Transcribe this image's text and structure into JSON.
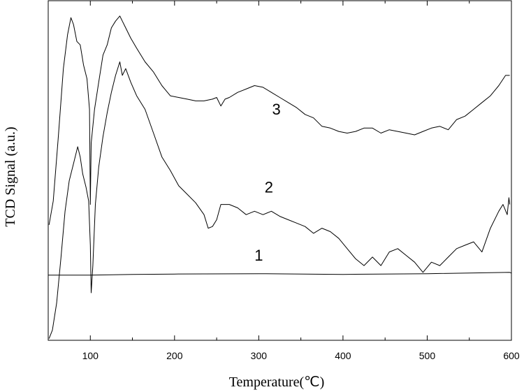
{
  "chart_data": {
    "type": "line",
    "xlabel": "Temperature(℃)",
    "ylabel": "TCD Signal (a.u.)",
    "xlim": [
      50,
      600
    ],
    "ylim": [
      0,
      100
    ],
    "x_ticks": [
      "100",
      "200",
      "300",
      "400",
      "500",
      "600"
    ],
    "x_tick_values": [
      100,
      200,
      300,
      400,
      500,
      600
    ],
    "grid": false,
    "legend": "none",
    "series_labels": [
      "1",
      "2",
      "3"
    ],
    "series": [
      {
        "label": "1",
        "x": [
          50,
          100,
          150,
          200,
          300,
          400,
          500,
          598,
          600
        ],
        "y": [
          19.2,
          19.2,
          19.4,
          19.5,
          19.6,
          19.4,
          19.6,
          20.0,
          19.8
        ]
      },
      {
        "label": "2",
        "x": [
          51,
          55,
          60,
          65,
          70,
          75,
          80,
          85,
          88,
          91,
          95,
          98,
          100,
          101,
          103,
          106,
          110,
          115,
          120,
          125,
          130,
          135,
          138,
          142,
          148,
          155,
          165,
          175,
          185,
          195,
          205,
          215,
          225,
          235,
          240,
          245,
          250,
          255,
          265,
          275,
          285,
          295,
          305,
          315,
          325,
          335,
          345,
          355,
          365,
          375,
          385,
          395,
          405,
          415,
          425,
          435,
          445,
          455,
          465,
          475,
          485,
          495,
          505,
          515,
          525,
          535,
          545,
          555,
          565,
          575,
          585,
          590,
          595,
          597,
          598
        ],
        "y": [
          0.5,
          3.0,
          11.0,
          24.0,
          38.0,
          47.0,
          52.0,
          57.0,
          54.0,
          49.0,
          45.0,
          41.0,
          28.0,
          14.0,
          22.0,
          40.0,
          51.0,
          60.0,
          67.0,
          73.0,
          78.0,
          82.0,
          78.0,
          80.0,
          76.0,
          72.0,
          68.0,
          61.0,
          54.0,
          50.0,
          45.5,
          43.0,
          40.5,
          37.0,
          33.0,
          33.5,
          35.5,
          40.0,
          40.0,
          39.0,
          37.0,
          38.0,
          37.0,
          38.0,
          36.5,
          35.5,
          34.5,
          33.5,
          31.5,
          33.0,
          32.0,
          30.0,
          27.0,
          24.0,
          22.0,
          24.5,
          22.0,
          26.0,
          27.0,
          25.0,
          23.0,
          20.0,
          23.0,
          22.0,
          24.5,
          27.0,
          28.0,
          29.0,
          26.0,
          33.0,
          38.0,
          40.0,
          37.0,
          42.0,
          40.0
        ]
      },
      {
        "label": "3",
        "x": [
          51,
          56,
          62,
          68,
          73,
          77,
          80,
          84,
          88,
          92,
          96,
          99,
          100,
          101,
          105,
          110,
          115,
          120,
          125,
          130,
          135,
          138,
          142,
          148,
          155,
          165,
          175,
          185,
          195,
          205,
          215,
          225,
          235,
          245,
          250,
          255,
          260,
          265,
          275,
          285,
          295,
          305,
          315,
          325,
          335,
          345,
          355,
          365,
          375,
          385,
          395,
          405,
          415,
          425,
          435,
          445,
          455,
          465,
          475,
          485,
          495,
          505,
          515,
          525,
          535,
          545,
          555,
          565,
          575,
          585,
          593,
          598
        ],
        "y": [
          34.0,
          41.0,
          60.0,
          80.0,
          90.0,
          95.0,
          93.0,
          88.0,
          87.0,
          81.0,
          77.0,
          68.0,
          40.0,
          58.0,
          68.0,
          76.0,
          84.0,
          87.0,
          92.0,
          94.0,
          95.5,
          94.0,
          92.0,
          89.0,
          86.0,
          82.0,
          79.0,
          75.0,
          72.0,
          71.5,
          71.0,
          70.5,
          70.5,
          71.0,
          71.5,
          69.0,
          71.0,
          71.5,
          73.0,
          74.0,
          75.0,
          74.5,
          73.0,
          71.5,
          70.0,
          68.5,
          66.5,
          65.5,
          63.0,
          62.5,
          61.5,
          61.0,
          61.5,
          62.5,
          62.5,
          61.0,
          62.0,
          61.5,
          61.0,
          60.5,
          61.5,
          62.5,
          63.0,
          62.0,
          65.0,
          66.0,
          68.0,
          70.0,
          72.0,
          75.0,
          78.0,
          78.0
        ]
      }
    ]
  }
}
